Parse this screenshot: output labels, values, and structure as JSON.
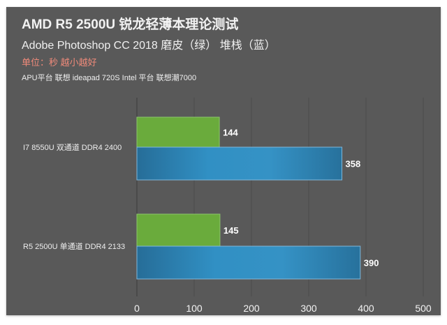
{
  "chart_data": {
    "type": "bar",
    "orientation": "horizontal",
    "title": "AMD R5 2500U 锐龙轻薄本理论测试",
    "subtitle": "Adobe Photoshop CC 2018 磨皮（绿） 堆栈（蓝）",
    "unit_note": "单位：秒 越小越好",
    "platform_note": "APU平台 联想 ideapad 720S Intel  平台 联想潮7000",
    "categories": [
      "I7 8550U 双通道 DDR4 2400",
      "R5 2500U 单通道 DDR4 2133"
    ],
    "series": [
      {
        "values": [
          144,
          145
        ],
        "color": "#6aab3c"
      },
      {
        "values": [
          358,
          390
        ],
        "color": "#2e7fb0"
      }
    ],
    "xlim": [
      0,
      500
    ],
    "xticks": [
      "0",
      "100",
      "200",
      "300",
      "400",
      "500"
    ],
    "grid": true,
    "background": "#595959"
  }
}
